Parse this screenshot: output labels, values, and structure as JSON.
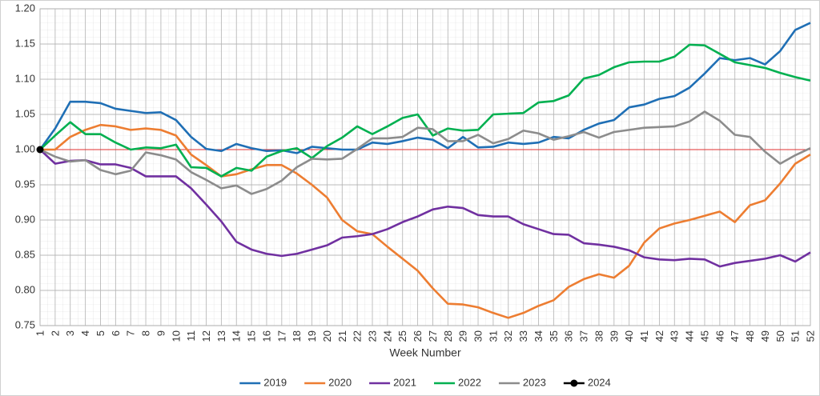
{
  "chart_data": {
    "type": "line",
    "x_label": "Week Number",
    "x": [
      1,
      2,
      3,
      4,
      5,
      6,
      7,
      8,
      9,
      10,
      11,
      12,
      13,
      14,
      15,
      16,
      17,
      18,
      19,
      20,
      21,
      22,
      23,
      24,
      25,
      26,
      27,
      28,
      29,
      30,
      31,
      32,
      33,
      34,
      35,
      36,
      37,
      38,
      39,
      40,
      41,
      42,
      43,
      44,
      45,
      46,
      47,
      48,
      49,
      50,
      51,
      52
    ],
    "xlim": [
      1,
      52
    ],
    "xticks": [
      1,
      2,
      3,
      4,
      5,
      6,
      7,
      8,
      9,
      10,
      11,
      12,
      13,
      14,
      15,
      16,
      17,
      18,
      19,
      20,
      21,
      22,
      23,
      24,
      25,
      26,
      27,
      28,
      29,
      30,
      31,
      32,
      33,
      34,
      35,
      36,
      37,
      38,
      39,
      40,
      41,
      42,
      43,
      44,
      45,
      46,
      47,
      48,
      49,
      50,
      51,
      52
    ],
    "ylim": [
      0.75,
      1.2
    ],
    "yticks": [
      {
        "value": 0.75,
        "label": "0.75"
      },
      {
        "value": 0.8,
        "label": "0.80"
      },
      {
        "value": 0.85,
        "label": "0.85"
      },
      {
        "value": 0.9,
        "label": "0.90"
      },
      {
        "value": 0.95,
        "label": "0.95"
      },
      {
        "value": 1.0,
        "label": "1.00"
      },
      {
        "value": 1.05,
        "label": "1.05"
      },
      {
        "value": 1.1,
        "label": "1.10"
      },
      {
        "value": 1.15,
        "label": "1.15"
      },
      {
        "value": 1.2,
        "label": "1.20"
      }
    ],
    "grid": true,
    "reference_line": {
      "value": 1.0,
      "color": "#e03030"
    },
    "legend": "bottom",
    "series": [
      {
        "name": "2019",
        "color": "#1f6fb5",
        "values": [
          1.0,
          1.03,
          1.068,
          1.068,
          1.066,
          1.058,
          1.055,
          1.052,
          1.053,
          1.042,
          1.018,
          1.001,
          0.998,
          1.008,
          1.002,
          0.998,
          0.999,
          0.995,
          1.004,
          1.002,
          1.0,
          1.0,
          1.01,
          1.008,
          1.012,
          1.017,
          1.014,
          1.002,
          1.018,
          1.003,
          1.004,
          1.01,
          1.008,
          1.01,
          1.018,
          1.016,
          1.028,
          1.037,
          1.042,
          1.06,
          1.064,
          1.072,
          1.076,
          1.088,
          1.108,
          1.13,
          1.127,
          1.13,
          1.121,
          1.14,
          1.17,
          1.18
        ]
      },
      {
        "name": "2020",
        "color": "#ed7d31",
        "values": [
          1.0,
          1.0,
          1.018,
          1.028,
          1.035,
          1.033,
          1.028,
          1.03,
          1.028,
          1.02,
          0.993,
          0.978,
          0.962,
          0.965,
          0.972,
          0.978,
          0.978,
          0.966,
          0.95,
          0.932,
          0.9,
          0.884,
          0.88,
          0.862,
          0.845,
          0.828,
          0.803,
          0.781,
          0.78,
          0.776,
          0.768,
          0.761,
          0.768,
          0.778,
          0.786,
          0.805,
          0.816,
          0.823,
          0.818,
          0.835,
          0.868,
          0.888,
          0.895,
          0.9,
          0.906,
          0.912,
          0.897,
          0.921,
          0.928,
          0.952,
          0.98,
          0.993
        ]
      },
      {
        "name": "2021",
        "color": "#7030a0",
        "values": [
          1.0,
          0.98,
          0.984,
          0.985,
          0.979,
          0.979,
          0.974,
          0.962,
          0.962,
          0.962,
          0.945,
          0.922,
          0.898,
          0.869,
          0.858,
          0.852,
          0.849,
          0.852,
          0.858,
          0.864,
          0.875,
          0.877,
          0.88,
          0.887,
          0.897,
          0.905,
          0.915,
          0.919,
          0.917,
          0.907,
          0.905,
          0.905,
          0.894,
          0.887,
          0.88,
          0.879,
          0.867,
          0.865,
          0.862,
          0.857,
          0.847,
          0.844,
          0.843,
          0.845,
          0.844,
          0.834,
          0.839,
          0.842,
          0.845,
          0.85,
          0.841,
          0.854
        ]
      },
      {
        "name": "2022",
        "color": "#00b050",
        "values": [
          1.0,
          1.02,
          1.039,
          1.022,
          1.022,
          1.01,
          1.0,
          1.003,
          1.002,
          1.007,
          0.975,
          0.974,
          0.962,
          0.974,
          0.97,
          0.99,
          0.998,
          1.002,
          0.988,
          1.005,
          1.017,
          1.033,
          1.022,
          1.033,
          1.045,
          1.05,
          1.02,
          1.03,
          1.027,
          1.028,
          1.05,
          1.051,
          1.052,
          1.067,
          1.069,
          1.077,
          1.101,
          1.106,
          1.117,
          1.124,
          1.125,
          1.125,
          1.132,
          1.149,
          1.148,
          1.136,
          1.124,
          1.12,
          1.116,
          1.109,
          1.103,
          1.098
        ]
      },
      {
        "name": "2023",
        "color": "#8c8c8c",
        "values": [
          1.0,
          0.99,
          0.983,
          0.985,
          0.971,
          0.965,
          0.97,
          0.996,
          0.992,
          0.986,
          0.968,
          0.957,
          0.945,
          0.949,
          0.937,
          0.944,
          0.956,
          0.975,
          0.987,
          0.986,
          0.987,
          1.001,
          1.016,
          1.016,
          1.018,
          1.031,
          1.029,
          1.012,
          1.012,
          1.021,
          1.009,
          1.015,
          1.027,
          1.023,
          1.014,
          1.019,
          1.025,
          1.017,
          1.025,
          1.028,
          1.031,
          1.032,
          1.033,
          1.04,
          1.054,
          1.041,
          1.021,
          1.018,
          0.997,
          0.98,
          0.992,
          1.002
        ]
      },
      {
        "name": "2024",
        "color": "#000000",
        "marker": "circle",
        "values": [
          1.0,
          null,
          null,
          null,
          null,
          null,
          null,
          null,
          null,
          null,
          null,
          null,
          null,
          null,
          null,
          null,
          null,
          null,
          null,
          null,
          null,
          null,
          null,
          null,
          null,
          null,
          null,
          null,
          null,
          null,
          null,
          null,
          null,
          null,
          null,
          null,
          null,
          null,
          null,
          null,
          null,
          null,
          null,
          null,
          null,
          null,
          null,
          null,
          null,
          null,
          null,
          null
        ]
      }
    ]
  }
}
